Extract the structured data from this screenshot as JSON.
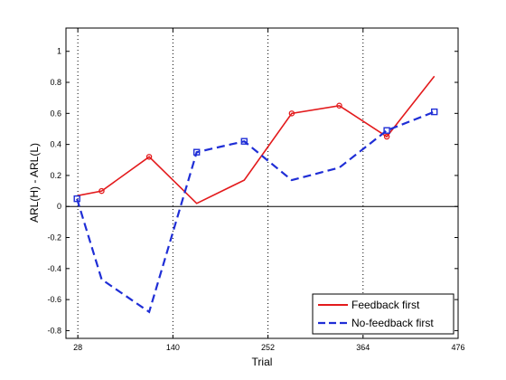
{
  "chart_data": {
    "type": "line",
    "title": "",
    "xlabel": "Trial",
    "ylabel": "ARL(H) - ARL(L)",
    "xlim": [
      14,
      476
    ],
    "ylim": [
      -0.85,
      1.15
    ],
    "xticks": [
      28,
      140,
      252,
      364,
      476
    ],
    "xtick_labels": [
      "28",
      "140",
      "252",
      "364",
      "476"
    ],
    "yticks": [
      -0.8,
      -0.6,
      -0.4,
      -0.2,
      0,
      0.2,
      0.4,
      0.6,
      0.8,
      1
    ],
    "ytick_labels": [
      "-0.8",
      "-0.6",
      "-0.4",
      "-0.2",
      "0",
      "0.2",
      "0.4",
      "0.6",
      "0.8",
      "1"
    ],
    "vertical_dotted_lines_at_x": [
      28,
      140,
      252,
      364
    ],
    "zero_line": true,
    "legend_position": "bottom-right",
    "series": [
      {
        "name": "Feedback first",
        "color": "#e31a1c",
        "line_style": "solid",
        "marker": "circle",
        "points": [
          {
            "x": 28,
            "y": 0.07,
            "marker": false
          },
          {
            "x": 56,
            "y": 0.1,
            "marker": true
          },
          {
            "x": 112,
            "y": 0.32,
            "marker": true
          },
          {
            "x": 168,
            "y": 0.02,
            "marker": false
          },
          {
            "x": 224,
            "y": 0.17,
            "marker": false
          },
          {
            "x": 280,
            "y": 0.6,
            "marker": true
          },
          {
            "x": 336,
            "y": 0.65,
            "marker": true
          },
          {
            "x": 392,
            "y": 0.45,
            "marker": true
          },
          {
            "x": 448,
            "y": 0.84,
            "marker": false
          }
        ]
      },
      {
        "name": "No-feedback first",
        "color": "#1f2ed6",
        "line_style": "dashed",
        "marker": "square",
        "points": [
          {
            "x": 27,
            "y": 0.05,
            "marker": true
          },
          {
            "x": 56,
            "y": -0.47,
            "marker": false
          },
          {
            "x": 112,
            "y": -0.68,
            "marker": false
          },
          {
            "x": 168,
            "y": 0.35,
            "marker": true
          },
          {
            "x": 224,
            "y": 0.42,
            "marker": true
          },
          {
            "x": 280,
            "y": 0.17,
            "marker": false
          },
          {
            "x": 336,
            "y": 0.25,
            "marker": false
          },
          {
            "x": 392,
            "y": 0.49,
            "marker": true
          },
          {
            "x": 448,
            "y": 0.61,
            "marker": true
          }
        ]
      }
    ]
  }
}
